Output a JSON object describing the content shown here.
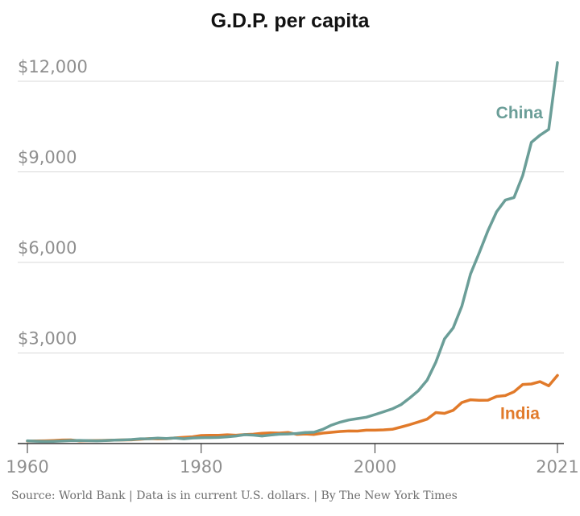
{
  "chart_data": {
    "type": "line",
    "title": "G.D.P. per capita",
    "xlabel": "",
    "ylabel": "",
    "xlim": [
      1960,
      2021
    ],
    "ylim": [
      0,
      12600
    ],
    "grid": true,
    "y_ticks": [
      3000,
      6000,
      9000,
      12000
    ],
    "y_tick_labels": [
      "$3,000",
      "$6,000",
      "$9,000",
      "$12,000"
    ],
    "x_ticks": [
      1960,
      1980,
      2000,
      2021
    ],
    "x_tick_labels": [
      "1960",
      "1980",
      "2000",
      "2021"
    ],
    "x": [
      1960,
      1961,
      1962,
      1963,
      1964,
      1965,
      1966,
      1967,
      1968,
      1969,
      1970,
      1971,
      1972,
      1973,
      1974,
      1975,
      1976,
      1977,
      1978,
      1979,
      1980,
      1981,
      1982,
      1983,
      1984,
      1985,
      1986,
      1987,
      1988,
      1989,
      1990,
      1991,
      1992,
      1993,
      1994,
      1995,
      1996,
      1997,
      1998,
      1999,
      2000,
      2001,
      2002,
      2003,
      2004,
      2005,
      2006,
      2007,
      2008,
      2009,
      2010,
      2011,
      2012,
      2013,
      2014,
      2015,
      2016,
      2017,
      2018,
      2019,
      2020,
      2021
    ],
    "series": [
      {
        "name": "China",
        "color": "#6b9e98",
        "values": [
          90,
          76,
          70,
          74,
          85,
          98,
          104,
          96,
          91,
          100,
          113,
          119,
          132,
          157,
          160,
          178,
          165,
          185,
          156,
          183,
          195,
          197,
          203,
          225,
          250,
          294,
          281,
          251,
          283,
          310,
          318,
          333,
          366,
          377,
          473,
          610,
          709,
          781,
          828,
          873,
          959,
          1053,
          1149,
          1289,
          1509,
          1753,
          2099,
          2694,
          3468,
          3832,
          4550,
          5618,
          6317,
          7051,
          7679,
          8067,
          8148,
          8879,
          9977,
          10217,
          10409,
          12618
        ]
      },
      {
        "name": "India",
        "color": "#e17a2a",
        "values": [
          82,
          85,
          90,
          101,
          116,
          119,
          90,
          96,
          100,
          107,
          112,
          119,
          123,
          144,
          163,
          158,
          161,
          186,
          206,
          224,
          267,
          271,
          275,
          291,
          277,
          297,
          310,
          340,
          355,
          347,
          368,
          303,
          317,
          301,
          346,
          374,
          400,
          415,
          413,
          442,
          443,
          452,
          471,
          547,
          627,
          715,
          807,
          1028,
          999,
          1102,
          1358,
          1450,
          1434,
          1438,
          1560,
          1590,
          1714,
          1958,
          1974,
          2050,
          1913,
          2256
        ]
      }
    ]
  },
  "source_text": "Source: World Bank | Data is in current U.S. dollars. | By The New York Times"
}
